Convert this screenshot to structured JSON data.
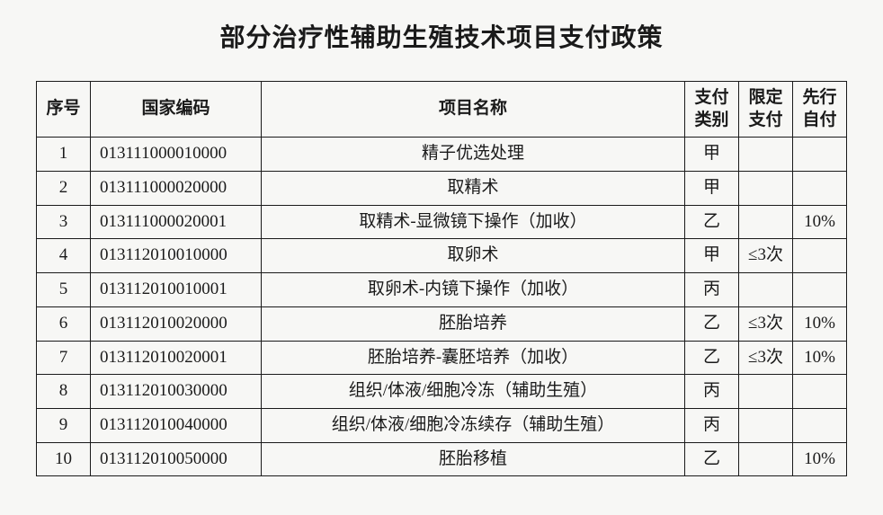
{
  "title": "部分治疗性辅助生殖技术项目支付政策",
  "table": {
    "columns": [
      {
        "label": "序号"
      },
      {
        "label": "国家编码"
      },
      {
        "label": "项目名称"
      },
      {
        "label": "支付类别"
      },
      {
        "label": "限定支付"
      },
      {
        "label": "先行自付"
      }
    ],
    "rows": [
      {
        "seq": "1",
        "code": "013111000010000",
        "name": "精子优选处理",
        "cat": "甲",
        "limit": "",
        "self": ""
      },
      {
        "seq": "2",
        "code": "013111000020000",
        "name": "取精术",
        "cat": "甲",
        "limit": "",
        "self": ""
      },
      {
        "seq": "3",
        "code": "013111000020001",
        "name": "取精术-显微镜下操作（加收）",
        "cat": "乙",
        "limit": "",
        "self": "10%"
      },
      {
        "seq": "4",
        "code": "013112010010000",
        "name": "取卵术",
        "cat": "甲",
        "limit": "≤3次",
        "self": ""
      },
      {
        "seq": "5",
        "code": "013112010010001",
        "name": "取卵术-内镜下操作（加收）",
        "cat": "丙",
        "limit": "",
        "self": ""
      },
      {
        "seq": "6",
        "code": "013112010020000",
        "name": "胚胎培养",
        "cat": "乙",
        "limit": "≤3次",
        "self": "10%"
      },
      {
        "seq": "7",
        "code": "013112010020001",
        "name": "胚胎培养-囊胚培养（加收）",
        "cat": "乙",
        "limit": "≤3次",
        "self": "10%"
      },
      {
        "seq": "8",
        "code": "013112010030000",
        "name": "组织/体液/细胞冷冻（辅助生殖）",
        "cat": "丙",
        "limit": "",
        "self": ""
      },
      {
        "seq": "9",
        "code": "013112010040000",
        "name": "组织/体液/细胞冷冻续存（辅助生殖）",
        "cat": "丙",
        "limit": "",
        "self": ""
      },
      {
        "seq": "10",
        "code": "013112010050000",
        "name": "胚胎移植",
        "cat": "乙",
        "limit": "",
        "self": "10%"
      }
    ]
  },
  "style": {
    "background_color": "#f7f7f5",
    "text_color": "#1a1a1a",
    "border_color": "#1a1a1a",
    "title_fontsize": 28,
    "cell_fontsize": 19,
    "font_family": "SimSun"
  }
}
